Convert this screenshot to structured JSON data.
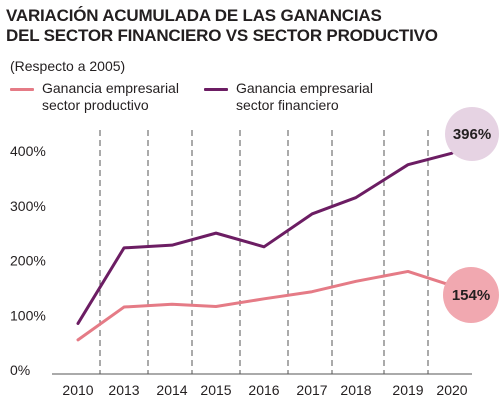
{
  "title_line1": "VARIACIÓN ACUMULADA DE LAS GANANCIAS",
  "title_line2": "DEL SECTOR FINANCIERO VS SECTOR PRODUCTIVO",
  "subtitle": "(Respecto a 2005)",
  "colors": {
    "productivo": "#e57b86",
    "financiero": "#6c1d63",
    "bubble_productivo": "#f1a8b0",
    "bubble_financiero": "#e6d3e3",
    "grid": "#555555"
  },
  "chart_data": {
    "type": "line",
    "x": [
      "2010",
      "2013",
      "2014",
      "2015",
      "2016",
      "2017",
      "2018",
      "2019",
      "2020"
    ],
    "ylim": [
      0,
      420
    ],
    "yticks": [
      "0%",
      "100%",
      "200%",
      "300%",
      "400%"
    ],
    "ytick_values": [
      0,
      100,
      200,
      300,
      400
    ],
    "grid": "vertical-dashed",
    "legend_position": "top",
    "series": [
      {
        "key": "productivo",
        "name_line1": "Ganancia empresarial",
        "name_line2": "sector productivo",
        "values": [
          55,
          115,
          120,
          116,
          130,
          143,
          162,
          180,
          154
        ]
      },
      {
        "key": "financiero",
        "name_line1": "Ganancia empresarial",
        "name_line2": "sector financiero",
        "values": [
          85,
          223,
          228,
          250,
          225,
          285,
          315,
          375,
          396
        ]
      }
    ],
    "annotations": [
      {
        "series": "financiero",
        "text": "396%"
      },
      {
        "series": "productivo",
        "text": "154%"
      }
    ]
  }
}
